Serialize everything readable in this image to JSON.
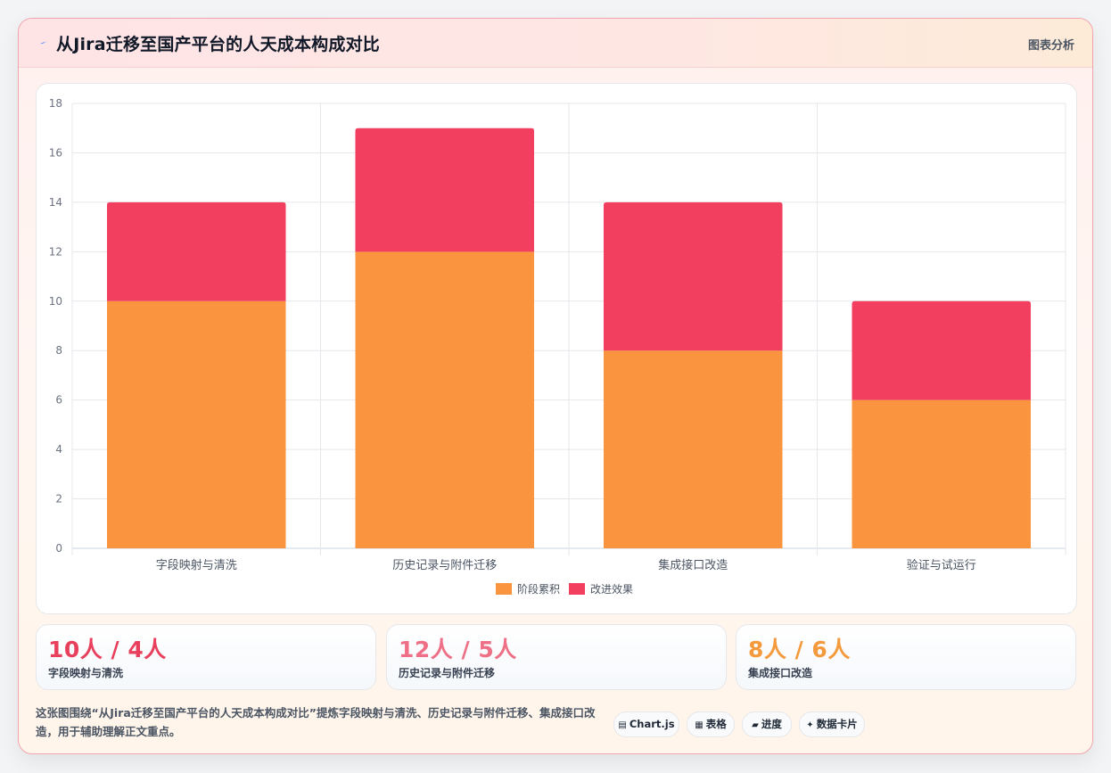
{
  "header": {
    "title": "从Jira迁移至国产平台的人天成本构成对比",
    "right_label": "图表分析",
    "icon": "lightning-icon"
  },
  "chart_data": {
    "type": "bar",
    "stacked": true,
    "categories": [
      "字段映射与清洗",
      "历史记录与附件迁移",
      "集成接口改造",
      "验证与试运行"
    ],
    "series": [
      {
        "name": "阶段累积",
        "values": [
          10,
          12,
          8,
          6
        ],
        "color": "#fa943f"
      },
      {
        "name": "改进效果",
        "values": [
          4,
          5,
          6,
          4
        ],
        "color": "#f23f60"
      }
    ],
    "ylim": [
      0,
      18
    ],
    "yticks": [
      0,
      2,
      4,
      6,
      8,
      10,
      12,
      14,
      16,
      18
    ],
    "grid": true,
    "legend_position": "bottom"
  },
  "stats": [
    {
      "value": "10人 / 4人",
      "label": "字段映射与清洗",
      "color": "#e8405c"
    },
    {
      "value": "12人 / 5人",
      "label": "历史记录与附件迁移",
      "color": "#ef6f86"
    },
    {
      "value": "8人 / 6人",
      "label": "集成接口改造",
      "color": "#f59a3c"
    }
  ],
  "footer": {
    "description": "这张图围绕“从Jira迁移至国产平台的人天成本构成对比”提炼字段映射与清洗、历史记录与附件迁移、集成接口改造，用于辅助理解正文重点。",
    "tags": [
      {
        "label": "Chart.js",
        "icon": "chart-icon"
      },
      {
        "label": "表格",
        "icon": "table-icon"
      },
      {
        "label": "进度",
        "icon": "progress-icon"
      },
      {
        "label": "数据卡片",
        "icon": "sparkle-icon"
      }
    ]
  }
}
